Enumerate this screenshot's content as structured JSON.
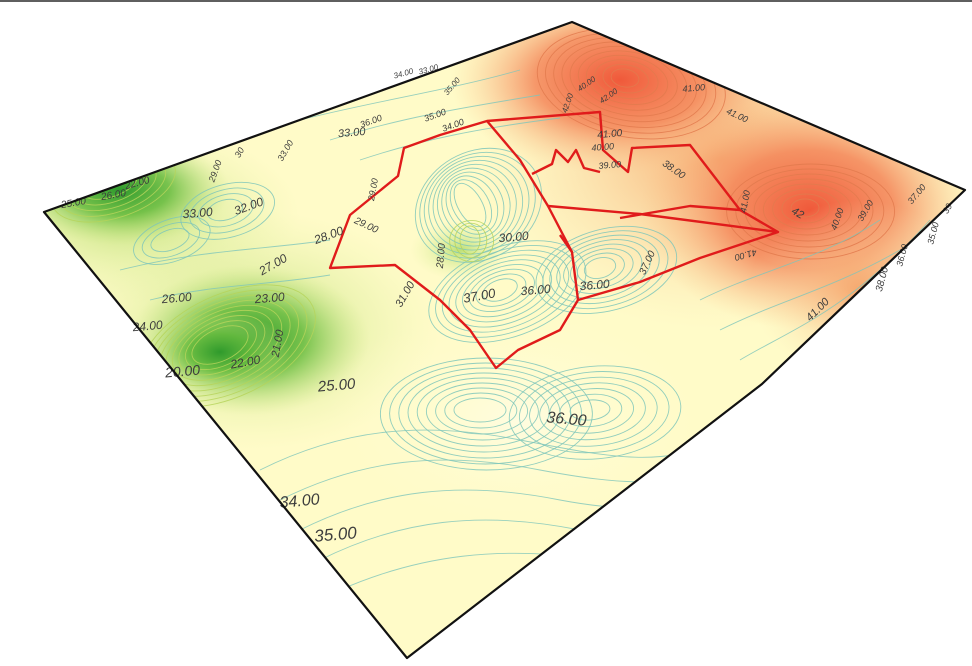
{
  "map": {
    "type": "3D contour surface",
    "colors": {
      "low": "#2f9a2c",
      "mid": "#fffbc8",
      "high": "#f0593a",
      "contour_low": "#b6d45a",
      "contour_mid": "#7ec6ba",
      "contour_high": "#e27a4e",
      "boundary": "#e01b1b",
      "frame": "#111111"
    },
    "contour_labels": [
      {
        "id": "l-22a",
        "text": "22.00"
      },
      {
        "id": "l-25a",
        "text": "25.00"
      },
      {
        "id": "l-26a",
        "text": "26.00"
      },
      {
        "id": "l-30a",
        "text": "30"
      },
      {
        "id": "l-29a",
        "text": "29.00"
      },
      {
        "id": "l-33a",
        "text": "33.00"
      },
      {
        "id": "l-32a",
        "text": "32.00"
      },
      {
        "id": "l-33b",
        "text": "33.00"
      },
      {
        "id": "l-36a",
        "text": "36.00"
      },
      {
        "id": "l-34a",
        "text": "34.00"
      },
      {
        "id": "l-33c",
        "text": "33.00"
      },
      {
        "id": "l-35a",
        "text": "35.00"
      },
      {
        "id": "l-35b",
        "text": "35.00"
      },
      {
        "id": "l-34b",
        "text": "34.00"
      },
      {
        "id": "l-33d",
        "text": "33.00"
      },
      {
        "id": "l-28a",
        "text": "28.00"
      },
      {
        "id": "l-29b",
        "text": "29.00"
      },
      {
        "id": "l-29c",
        "text": "29.00"
      },
      {
        "id": "l-28b",
        "text": "28.00"
      },
      {
        "id": "l-30b",
        "text": "30.00"
      },
      {
        "id": "l-27a",
        "text": "27.00"
      },
      {
        "id": "l-26b",
        "text": "26.00"
      },
      {
        "id": "l-23a",
        "text": "23.00"
      },
      {
        "id": "l-24a",
        "text": "24.00"
      },
      {
        "id": "l-21a",
        "text": "21.00"
      },
      {
        "id": "l-20a",
        "text": "20.00"
      },
      {
        "id": "l-22b",
        "text": "22.00"
      },
      {
        "id": "l-25b",
        "text": "25.00"
      },
      {
        "id": "l-31a",
        "text": "31.00"
      },
      {
        "id": "l-37a",
        "text": "37.00"
      },
      {
        "id": "l-36b",
        "text": "36.00"
      },
      {
        "id": "l-36c",
        "text": "36.00"
      },
      {
        "id": "l-37b",
        "text": "37.00"
      },
      {
        "id": "l-36d",
        "text": "36.00"
      },
      {
        "id": "l-34c",
        "text": "34.00"
      },
      {
        "id": "l-35c",
        "text": "35.00"
      },
      {
        "id": "l-40a",
        "text": "40.00"
      },
      {
        "id": "l-42a",
        "text": "42.00"
      },
      {
        "id": "l-41a",
        "text": "41.00"
      },
      {
        "id": "l-40b",
        "text": "40.00"
      },
      {
        "id": "l-39a",
        "text": "39.00"
      },
      {
        "id": "l-38a",
        "text": "38.00"
      },
      {
        "id": "l-41b",
        "text": "41.00"
      },
      {
        "id": "l-41c",
        "text": "41.00"
      },
      {
        "id": "l-42b",
        "text": "42"
      },
      {
        "id": "l-40c",
        "text": "40.00"
      },
      {
        "id": "l-39b",
        "text": "39.00"
      },
      {
        "id": "l-41d",
        "text": "41.00"
      },
      {
        "id": "l-38b",
        "text": "38.00"
      },
      {
        "id": "l-36e",
        "text": "36.00"
      },
      {
        "id": "l-35d",
        "text": "35.00"
      },
      {
        "id": "l-41e",
        "text": "41.00"
      },
      {
        "id": "l-37c",
        "text": "37.00"
      },
      {
        "id": "l-42c",
        "text": "42.00"
      },
      {
        "id": "l-41f",
        "text": "41.00"
      },
      {
        "id": "l-39c",
        "text": "39"
      }
    ]
  }
}
